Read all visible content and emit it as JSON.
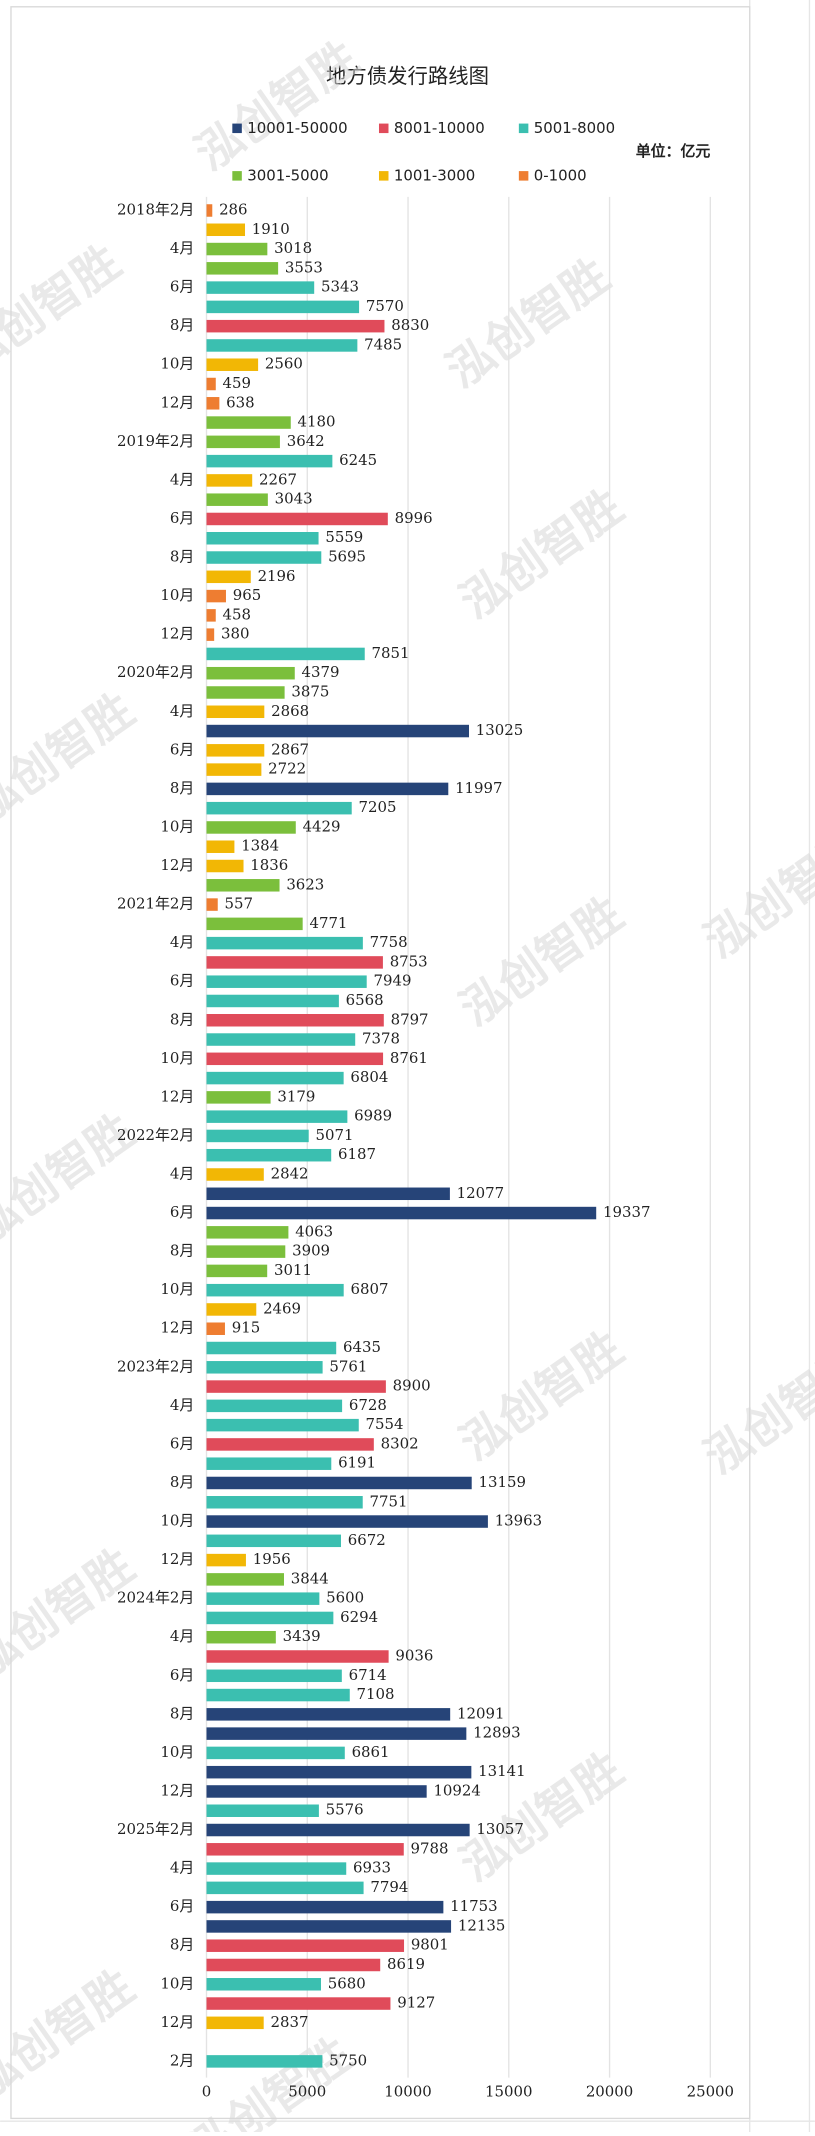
{
  "chart_data": {
    "type": "barh",
    "title": "地方债发行路线图",
    "unit": "单位：亿元",
    "watermark": "泓创智胜",
    "legend": [
      {
        "name": "10001-50000",
        "color": "#264478",
        "min": 10001,
        "max": 50000
      },
      {
        "name": "8001-10000",
        "color": "#e04b5a",
        "min": 8001,
        "max": 10000
      },
      {
        "name": "5001-8000",
        "color": "#3bbfb0",
        "min": 5001,
        "max": 8000
      },
      {
        "name": "3001-5000",
        "color": "#7bbf3c",
        "min": 3001,
        "max": 5000
      },
      {
        "name": "1001-3000",
        "color": "#f2b705",
        "min": 1001,
        "max": 3000
      },
      {
        "name": "0-1000",
        "color": "#ee7d31",
        "min": 0,
        "max": 1000
      }
    ],
    "categories": [
      "2018年2月",
      null,
      "4月",
      null,
      "6月",
      null,
      "8月",
      null,
      "10月",
      null,
      "12月",
      null,
      "2019年2月",
      null,
      "4月",
      null,
      "6月",
      null,
      "8月",
      null,
      "10月",
      null,
      "12月",
      null,
      "2020年2月",
      null,
      "4月",
      null,
      "6月",
      null,
      "8月",
      null,
      "10月",
      null,
      "12月",
      null,
      "2021年2月",
      null,
      "4月",
      null,
      "6月",
      null,
      "8月",
      null,
      "10月",
      null,
      "12月",
      null,
      "2022年2月",
      null,
      "4月",
      null,
      "6月",
      null,
      "8月",
      null,
      "10月",
      null,
      "12月",
      null,
      "2023年2月",
      null,
      "4月",
      null,
      "6月",
      null,
      "8月",
      null,
      "10月",
      null,
      "12月",
      null,
      "2024年2月",
      null,
      "4月",
      null,
      "6月",
      null,
      "8月",
      null,
      "10月",
      null,
      "12月",
      null,
      "2025年2月",
      null,
      "4月",
      null,
      "6月",
      null,
      "8月",
      null,
      "10月",
      null,
      "12月",
      null,
      "2月"
    ],
    "values": [
      286,
      1910,
      3018,
      3553,
      5343,
      7570,
      8830,
      7485,
      2560,
      459,
      638,
      4180,
      3642,
      6245,
      2267,
      3043,
      8996,
      5559,
      5695,
      2196,
      965,
      458,
      380,
      7851,
      4379,
      3875,
      2868,
      13025,
      2867,
      2722,
      11997,
      7205,
      4429,
      1384,
      1836,
      3623,
      557,
      4771,
      7758,
      8753,
      7949,
      6568,
      8797,
      7378,
      8761,
      6804,
      3179,
      6989,
      5071,
      6187,
      2842,
      12077,
      19337,
      4063,
      3909,
      3011,
      6807,
      2469,
      915,
      6435,
      5761,
      8900,
      6728,
      7554,
      8302,
      6191,
      13159,
      7751,
      13963,
      6672,
      1956,
      3844,
      5600,
      6294,
      3439,
      9036,
      6714,
      7108,
      12091,
      12893,
      6861,
      13141,
      10924,
      5576,
      13057,
      9788,
      6933,
      7794,
      11753,
      12135,
      9801,
      8619,
      5680,
      9127,
      2837,
      null,
      5750
    ],
    "xlim": [
      0,
      25000
    ],
    "xticks": [
      0,
      5000,
      10000,
      15000,
      20000,
      25000
    ],
    "grid": true
  }
}
